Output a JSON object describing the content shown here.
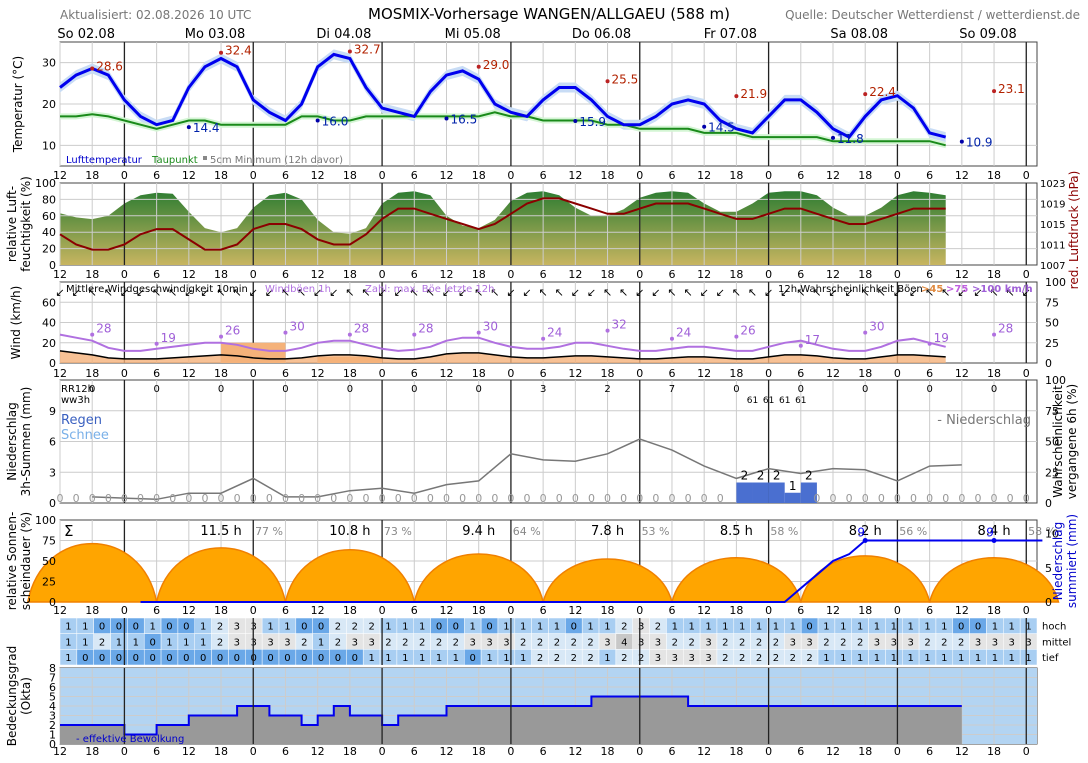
{
  "header": {
    "updated": "Aktualisiert: 02.08.2026 10 UTC",
    "title": "MOSMIX-Vorhersage WANGEN/ALLGAEU (588 m)",
    "source": "Quelle: Deutscher Wetterdienst / wetterdienst.de"
  },
  "days": [
    "So 02.08",
    "Mo 03.08",
    "Di 04.08",
    "Mi 05.08",
    "Do 06.08",
    "Fr 07.08",
    "Sa 08.08",
    "So 09.08"
  ],
  "hour_ticks": [
    "12",
    "18",
    "0",
    "6",
    "12",
    "18",
    "0",
    "6",
    "12",
    "18",
    "0",
    "6",
    "12",
    "18",
    "0",
    "6",
    "12",
    "18",
    "0",
    "6",
    "12",
    "18",
    "0",
    "6",
    "12",
    "18",
    "0",
    "6",
    "12",
    "18",
    "0",
    "6",
    "12",
    "18",
    "0"
  ],
  "panels": {
    "temp": {
      "ylabel": "Temperatur (°C)",
      "ticks": [
        "10",
        "20",
        "30"
      ],
      "legend": [
        "Lufttemperatur",
        "Taupunkt",
        "5cm Minimum (12h davor)"
      ]
    },
    "humidity": {
      "ylabel_left": [
        "relative Luft-",
        "feuchtigkeit (%)"
      ],
      "ylabel_right": "red. Luftdruck (hPa)",
      "ticks_left": [
        "0",
        "20",
        "40",
        "60",
        "80",
        "100"
      ],
      "ticks_right": [
        "1007",
        "1011",
        "1015",
        "1019",
        "1023"
      ]
    },
    "wind": {
      "ylabel": "Wind (km/h)",
      "ticks_left": [
        "0",
        "20",
        "40",
        "60"
      ],
      "ticks_right": [
        "0",
        "25",
        "50",
        "75",
        "100"
      ],
      "legend_mean": "Mittlere Windgeschwindigkeit 10min",
      "legend_gust": "Windböen 1h",
      "legend_gust_max": "Zahl: max. Böe letzte 12h",
      "legend_prob": "12h Wahrscheinlichkeit Böen",
      "legend_prob_45": ">45",
      "legend_prob_75": ">75",
      "legend_prob_100": ">100 km/h"
    },
    "precip": {
      "ylabel_left": [
        "Niederschlag",
        "3h-Summen (mm)"
      ],
      "ylabel_right": [
        "Wahrscheinlichkeit",
        "vergangene 6h (%)"
      ],
      "ticks_left": [
        "0",
        "3",
        "6",
        "9"
      ],
      "ticks_right": [
        "0",
        "25",
        "50",
        "75",
        "100"
      ],
      "rr12h": "RR12h",
      "ww3h": "ww3h",
      "rain": "Regen",
      "snow": "Schnee",
      "legend": "- Niederschlag"
    },
    "sun": {
      "ylabel_left": [
        "relative Sonnen-",
        "scheindauer (%)"
      ],
      "ylabel_right": [
        "Niederschlag",
        "summiert (mm)"
      ],
      "ticks_left": [
        "0",
        "25",
        "50",
        "75",
        "100"
      ],
      "ticks_right": [
        "0",
        "5",
        "10"
      ],
      "sigma": "Σ"
    },
    "clouds": {
      "ylabel": [
        "Bedeckungsgrad",
        "(Okta)"
      ],
      "ticks": [
        "0",
        "1",
        "2",
        "3",
        "4",
        "5",
        "6",
        "7",
        "8"
      ],
      "row_labels": [
        "hoch",
        "mittel",
        "tief"
      ],
      "legend": "- effektive Bewölkung"
    }
  },
  "chart_data": {
    "type": "line",
    "time_axis": "hours from 02.08.2026 12:00, 3-hourly steps",
    "temperature": {
      "values": [
        24,
        27,
        28.6,
        27,
        21,
        17,
        15,
        16,
        24,
        29,
        31,
        29,
        21,
        18,
        16,
        20,
        29,
        32,
        31,
        24,
        19,
        18,
        17,
        23,
        27,
        28,
        26,
        20,
        18,
        17,
        21,
        24,
        24,
        21,
        17,
        15,
        15,
        17,
        20,
        21,
        20,
        16,
        14,
        13,
        17,
        21,
        21,
        18,
        14,
        12,
        17,
        21,
        22,
        19,
        13,
        12
      ],
      "max_labels": [
        {
          "day": 0,
          "value": 28.6
        },
        {
          "day": 1,
          "value": 32.4
        },
        {
          "day": 2,
          "value": 32.7
        },
        {
          "day": 3,
          "value": 29.0
        },
        {
          "day": 4,
          "value": 25.5
        },
        {
          "day": 5,
          "value": 21.9
        },
        {
          "day": 6,
          "value": 22.4
        },
        {
          "day": 7,
          "value": 23.1
        }
      ],
      "min_labels": [
        {
          "day": 1,
          "value": 14.4
        },
        {
          "day": 2,
          "value": 16.0
        },
        {
          "day": 3,
          "value": 16.5
        },
        {
          "day": 4,
          "value": 15.9
        },
        {
          "day": 5,
          "value": 14.5
        },
        {
          "day": 6,
          "value": 11.8
        },
        {
          "day": 7,
          "value": 10.9
        }
      ],
      "dewpoint": [
        17,
        17,
        17.5,
        17,
        16,
        15,
        14,
        15,
        16,
        16,
        15,
        15,
        15,
        15,
        15,
        17,
        17,
        16,
        16,
        17,
        17,
        17,
        17,
        17,
        17,
        17,
        17,
        18,
        17,
        17,
        16,
        16,
        16,
        16,
        15,
        15,
        14,
        14,
        14,
        14,
        13,
        13,
        13,
        12,
        12,
        12,
        12,
        12,
        11,
        11,
        11,
        11,
        11,
        11,
        11,
        10
      ]
    },
    "humidity": [
      63,
      58,
      56,
      60,
      75,
      85,
      88,
      87,
      65,
      45,
      40,
      45,
      70,
      85,
      88,
      80,
      55,
      40,
      38,
      45,
      75,
      88,
      90,
      85,
      60,
      48,
      45,
      55,
      78,
      88,
      90,
      85,
      70,
      60,
      60,
      68,
      82,
      88,
      90,
      88,
      75,
      65,
      65,
      75,
      88,
      90,
      90,
      85,
      70,
      60,
      60,
      70,
      85,
      90,
      88,
      85
    ],
    "pressure": [
      1013,
      1011,
      1010,
      1010,
      1011,
      1013,
      1014,
      1014,
      1012,
      1010,
      1010,
      1011,
      1014,
      1015,
      1015,
      1014,
      1012,
      1011,
      1011,
      1013,
      1016,
      1018,
      1018,
      1017,
      1016,
      1015,
      1014,
      1015,
      1017,
      1019,
      1020,
      1020,
      1019,
      1018,
      1017,
      1017,
      1018,
      1019,
      1019,
      1019,
      1018,
      1017,
      1016,
      1016,
      1017,
      1018,
      1018,
      1017,
      1016,
      1015,
      1015,
      1016,
      1017,
      1018,
      1018,
      1018
    ],
    "wind": {
      "mean": [
        12,
        10,
        8,
        5,
        4,
        4,
        4,
        5,
        6,
        7,
        8,
        7,
        5,
        4,
        4,
        5,
        7,
        8,
        8,
        7,
        5,
        4,
        4,
        6,
        9,
        10,
        10,
        8,
        6,
        5,
        5,
        6,
        7,
        7,
        6,
        5,
        4,
        4,
        5,
        6,
        6,
        5,
        4,
        4,
        6,
        8,
        8,
        7,
        5,
        4,
        4,
        6,
        8,
        8,
        7,
        6
      ],
      "gust": [
        28,
        25,
        22,
        15,
        12,
        12,
        14,
        16,
        18,
        20,
        20,
        18,
        14,
        12,
        12,
        15,
        20,
        22,
        22,
        18,
        14,
        12,
        13,
        16,
        22,
        25,
        25,
        20,
        16,
        14,
        14,
        16,
        20,
        20,
        17,
        14,
        12,
        12,
        14,
        16,
        16,
        14,
        12,
        12,
        16,
        20,
        22,
        18,
        14,
        12,
        12,
        16,
        22,
        24,
        20,
        16
      ],
      "max_gust_12h": [
        28,
        19,
        26,
        30,
        28,
        28,
        30,
        24,
        32,
        24,
        26,
        17,
        30,
        19,
        28
      ]
    },
    "precipitation": {
      "rr12h": [
        "0",
        "0",
        "0",
        "0",
        "0",
        "0",
        "0",
        "3",
        "2",
        "7",
        "0",
        "0",
        "0",
        "0",
        "0"
      ],
      "ww3h": [
        "61",
        "61",
        "61",
        "61"
      ],
      "bars_3h_mm": [
        2,
        2,
        2,
        1,
        2
      ],
      "probability": [
        5,
        4,
        3,
        8,
        8,
        20,
        5,
        5,
        10,
        12,
        8,
        15,
        18,
        40,
        35,
        34,
        40,
        52,
        43,
        30,
        20,
        28,
        24,
        28,
        27,
        18,
        30,
        31
      ]
    },
    "sunshine": {
      "daily_hours": [
        "11.5 h",
        "10.8 h",
        "9.4 h",
        "7.8 h",
        "8.5 h",
        "8.2 h",
        "8.4 h"
      ],
      "daily_pct": [
        "77 %",
        "73 %",
        "64 %",
        "53 %",
        "58 %",
        "56 %",
        "58 %"
      ],
      "sum_labels": [
        "9",
        "9",
        "9"
      ],
      "sum_mm": [
        0,
        0,
        0,
        0,
        0,
        0,
        0,
        0,
        0,
        0,
        0,
        0,
        0,
        0,
        0,
        0,
        0,
        0,
        0,
        0,
        0,
        0,
        0,
        0,
        0,
        0,
        0,
        0,
        0,
        0,
        0,
        0,
        0,
        0,
        0,
        0,
        0,
        0,
        0,
        0,
        0,
        2,
        4,
        6,
        7,
        9,
        9,
        9,
        9,
        9,
        9,
        9,
        9,
        9,
        9,
        9,
        9
      ]
    },
    "clouds": {
      "hoch": [
        "1",
        "1",
        "0",
        "0",
        "0",
        "1",
        "0",
        "0",
        "1",
        "2",
        "3",
        "3",
        "1",
        "1",
        "0",
        "0",
        "2",
        "2",
        "2",
        "1",
        "1",
        "1",
        "0",
        "0",
        "1",
        "0",
        "1",
        "1",
        "1",
        "1",
        "0",
        "1",
        "1",
        "2",
        "3",
        "2",
        "1",
        "1",
        "1",
        "1",
        "1",
        "1",
        "1",
        "1",
        "0",
        "1",
        "1",
        "1",
        "1",
        "1",
        "1",
        "1",
        "1",
        "0",
        "0",
        "1",
        "1",
        "1"
      ],
      "mittel": [
        "1",
        "1",
        "2",
        "1",
        "1",
        "0",
        "1",
        "1",
        "1",
        "2",
        "3",
        "3",
        "3",
        "3",
        "2",
        "1",
        "2",
        "3",
        "3",
        "2",
        "2",
        "2",
        "2",
        "2",
        "3",
        "3",
        "3",
        "2",
        "2",
        "2",
        "2",
        "2",
        "3",
        "4",
        "3",
        "3",
        "2",
        "2",
        "3",
        "2",
        "2",
        "2",
        "2",
        "3",
        "3",
        "2",
        "2",
        "2",
        "3",
        "3",
        "3",
        "2",
        "2",
        "2",
        "3",
        "3",
        "3",
        "3"
      ],
      "tief": [
        "1",
        "0",
        "0",
        "0",
        "0",
        "0",
        "0",
        "0",
        "0",
        "0",
        "0",
        "0",
        "0",
        "0",
        "0",
        "0",
        "0",
        "0",
        "1",
        "1",
        "1",
        "1",
        "1",
        "1",
        "0",
        "1",
        "1",
        "1",
        "2",
        "2",
        "2",
        "2",
        "1",
        "2",
        "2",
        "3",
        "3",
        "3",
        "3",
        "2",
        "2",
        "2",
        "2",
        "2",
        "2",
        "1",
        "1",
        "1",
        "1",
        "1",
        "1",
        "1",
        "1",
        "1",
        "1",
        "1",
        "1",
        "1"
      ],
      "effective": [
        2,
        2,
        2,
        2,
        1,
        1,
        2,
        2,
        3,
        3,
        3,
        4,
        4,
        3,
        3,
        2,
        3,
        4,
        3,
        3,
        2,
        3,
        3,
        3,
        4,
        4,
        4,
        4,
        4,
        4,
        4,
        4,
        4,
        5,
        5,
        5,
        5,
        5,
        5,
        4,
        4,
        4,
        4,
        4,
        4,
        4,
        4,
        4,
        4,
        4,
        4,
        4,
        4,
        4,
        4,
        4
      ]
    }
  }
}
